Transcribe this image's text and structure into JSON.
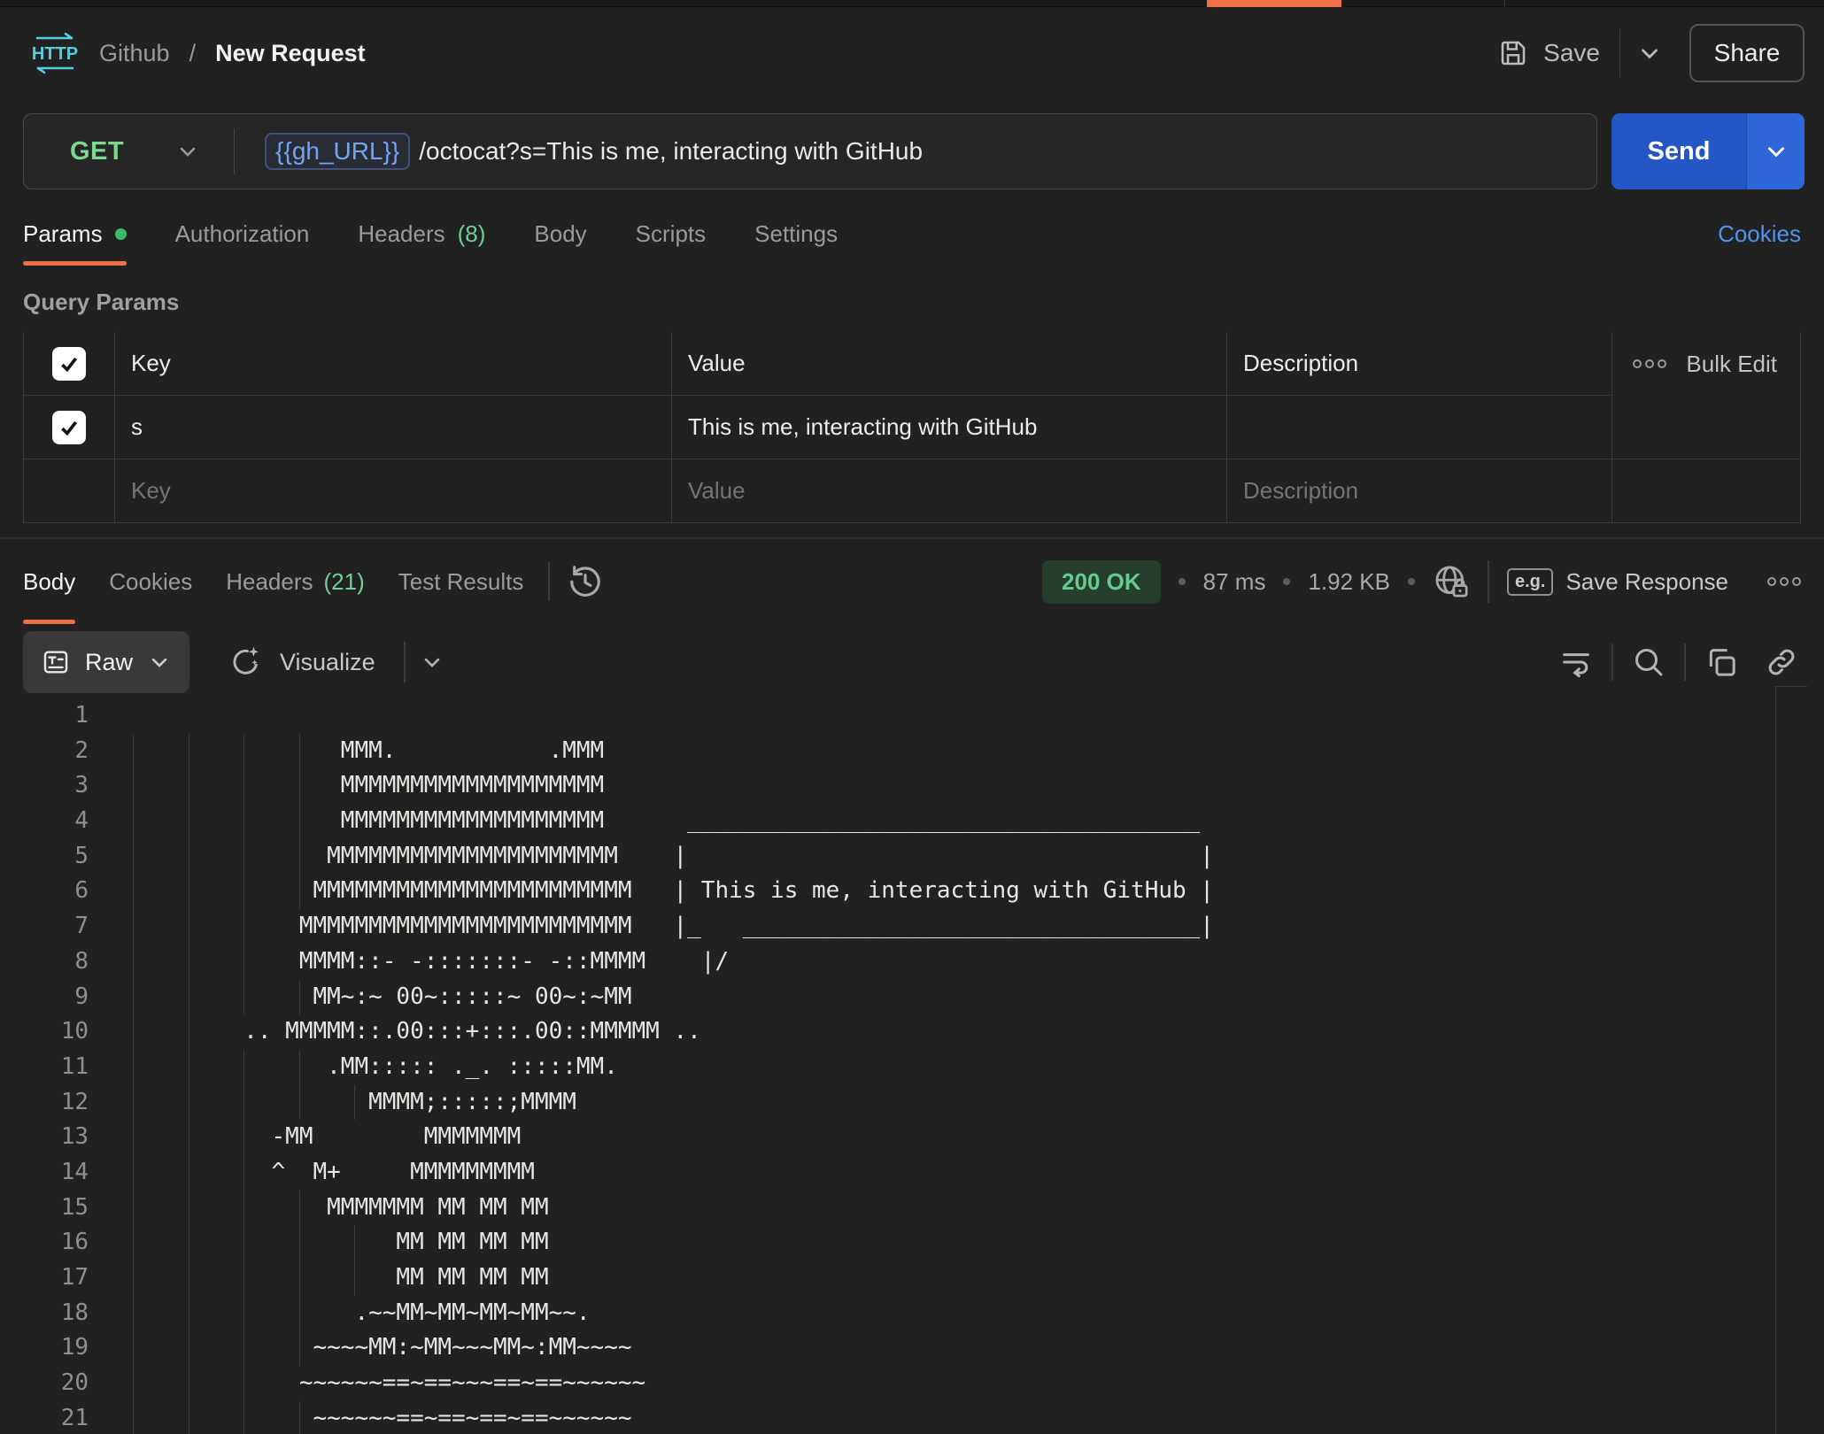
{
  "accent_colors": {
    "orange": "#ee7146",
    "method_green": "#7bd88f",
    "count_green": "#6fcf97",
    "status_green": "#64cd8a",
    "link_blue": "#4e94ec",
    "variable_blue": "#74a4f2",
    "send_blue": "#2457c6"
  },
  "topbar": {
    "http_logo_label": "HTTP",
    "breadcrumb": {
      "collection": "Github",
      "separator": "/",
      "request_name": "New Request"
    },
    "save_label": "Save",
    "share_label": "Share"
  },
  "request": {
    "method": "GET",
    "url_variable": "{{gh_URL}}",
    "url_path": "/octocat?s=This is me, interacting with GitHub",
    "send_label": "Send"
  },
  "request_tabs": {
    "params": "Params",
    "authorization": "Authorization",
    "headers": "Headers",
    "headers_count": "(8)",
    "body": "Body",
    "scripts": "Scripts",
    "settings": "Settings",
    "cookies_link": "Cookies"
  },
  "query_params": {
    "title": "Query Params",
    "columns": {
      "key": "Key",
      "value": "Value",
      "description": "Description"
    },
    "bulk_edit_label": "Bulk Edit",
    "rows": [
      {
        "checked": true,
        "key": "s",
        "value": "This is me, interacting with GitHub",
        "description": ""
      }
    ],
    "placeholder_row": {
      "key": "Key",
      "value": "Value",
      "description": "Description"
    }
  },
  "response": {
    "tabs": {
      "body": "Body",
      "cookies": "Cookies",
      "headers": "Headers",
      "headers_count": "(21)",
      "test_results": "Test Results"
    },
    "status": "200 OK",
    "time": "87 ms",
    "size": "1.92 KB",
    "eg_label": "e.g.",
    "save_response_label": "Save Response",
    "view_mode": "Raw",
    "visualize_label": "Visualize",
    "body_lines": [
      "",
      "               MMM.           .MMM",
      "               MMMMMMMMMMMMMMMMMMM",
      "               MMMMMMMMMMMMMMMMMMM      _____________________________________",
      "              MMMMMMMMMMMMMMMMMMMMM    |                                     |",
      "             MMMMMMMMMMMMMMMMMMMMMMM   | This is me, interacting with GitHub |",
      "            MMMMMMMMMMMMMMMMMMMMMMMM   |_   _________________________________|",
      "            MMMM::- -:::::::- -::MMMM    |/",
      "             MM~:~ 00~:::::~ 00~:~MM",
      "        .. MMMMM::.00:::+:::.00::MMMMM ..",
      "              .MM::::: ._. :::::MM.",
      "                 MMMM;:::::;MMMM",
      "          -MM        MMMMMMM",
      "          ^  M+     MMMMMMMMM",
      "              MMMMMMM MM MM MM",
      "                   MM MM MM MM",
      "                   MM MM MM MM",
      "                .~~MM~MM~MM~MM~~.",
      "             ~~~~MM:~MM~~~MM~:MM~~~~",
      "            ~~~~~~==~==~~~==~==~~~~~~",
      "             ~~~~~~==~==~==~==~~~~~~"
    ]
  },
  "icons": {
    "http_logo": "http-arrows",
    "save": "floppy-disk",
    "chevron_down": "chevron-down",
    "bulk_edit": "three-rings",
    "history": "clock-restore",
    "globe_lock": "globe-with-lock",
    "eg": "example-badge",
    "more": "three-rings",
    "raw_view": "text-format",
    "visualize": "sparkle-wand",
    "wrap": "wrap-text",
    "search": "magnifier",
    "copy": "copy-squares",
    "link": "chain-link",
    "checkbox_check": "check-mark"
  }
}
